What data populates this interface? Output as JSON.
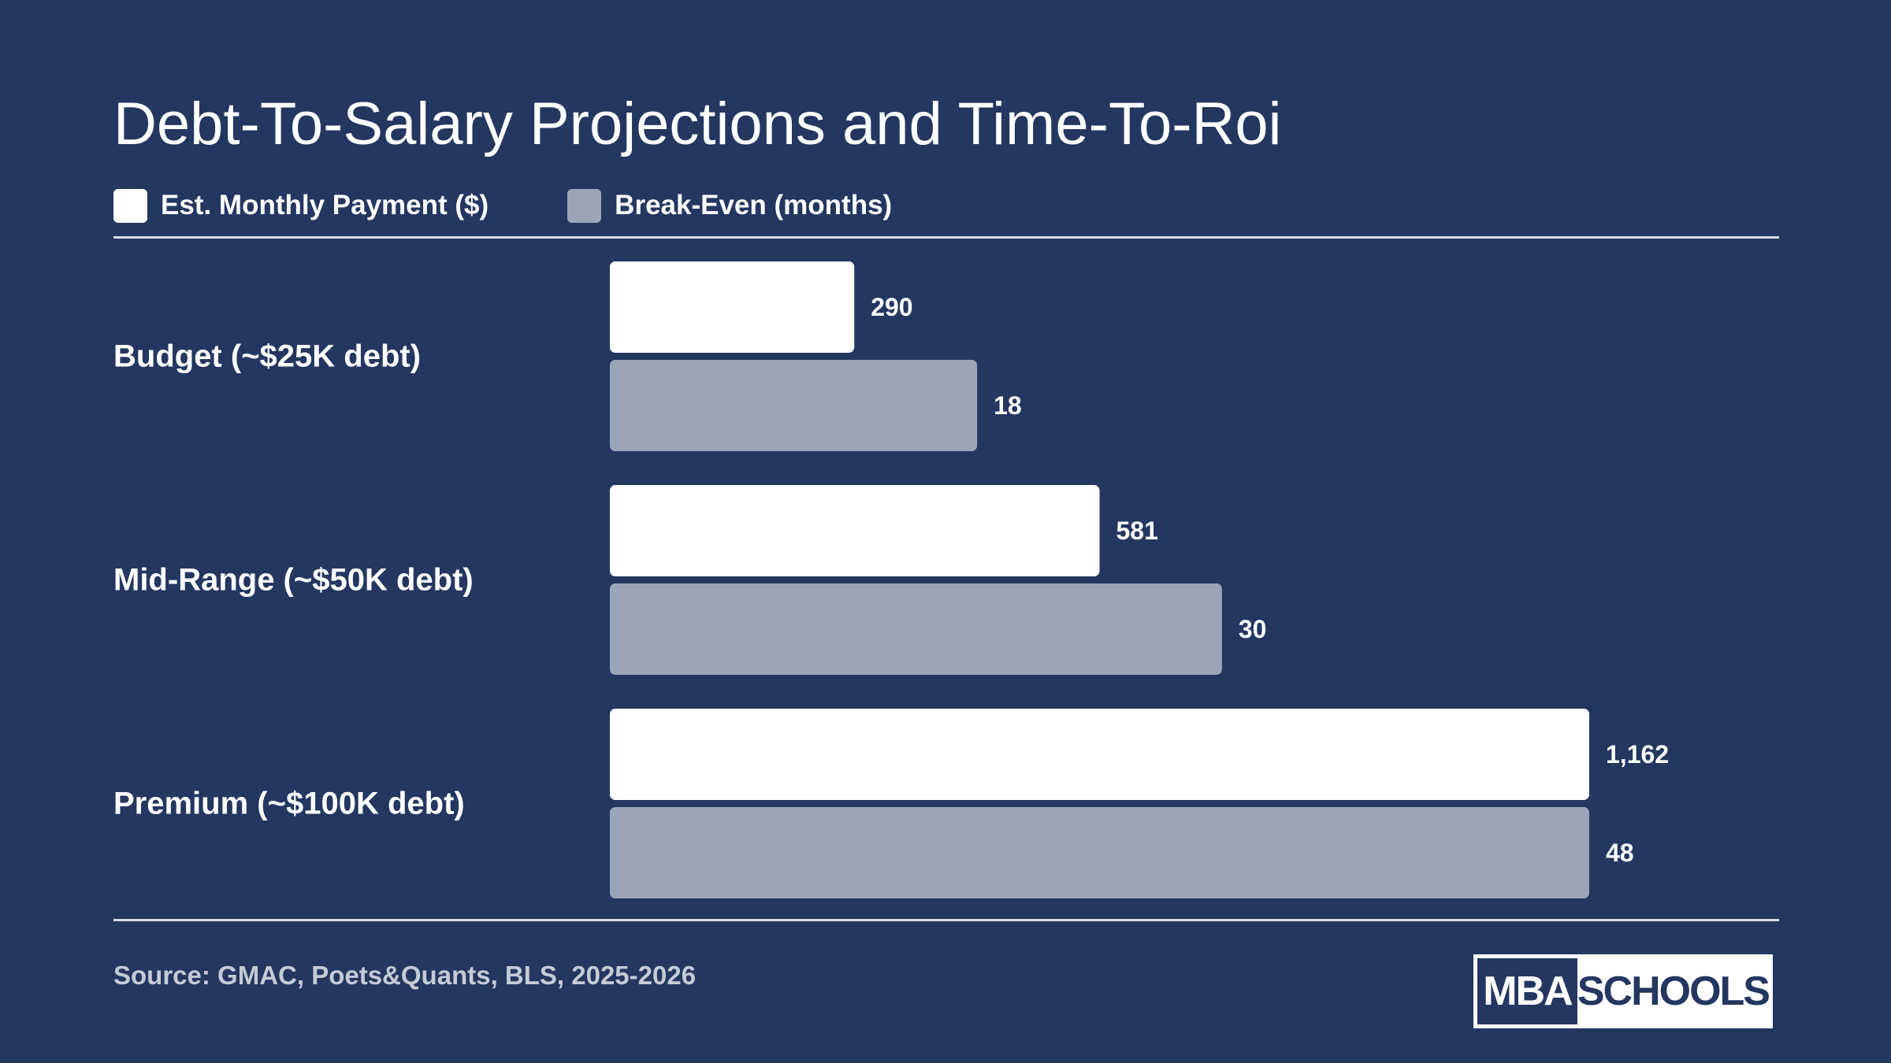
{
  "chart_data": {
    "type": "bar",
    "orientation": "horizontal",
    "title": "Debt-To-Salary Projections and Time-To-Roi",
    "categories": [
      "Budget (~$25K debt)",
      "Mid-Range (~$50K debt)",
      "Premium (~$100K debt)"
    ],
    "series": [
      {
        "name": "Est. Monthly Payment ($)",
        "values": [
          290,
          581,
          1162
        ],
        "labels": [
          "290",
          "581",
          "1,162"
        ],
        "color": "#ffffff"
      },
      {
        "name": "Break-Even (months)",
        "values": [
          18,
          30,
          48
        ],
        "labels": [
          "18",
          "30",
          "48"
        ],
        "color": "#9ca5b8"
      }
    ],
    "legend": "top-left",
    "grid": false,
    "axes_visible": false
  },
  "source": "Source: GMAC, Poets&Quants, BLS, 2025-2026",
  "logo": {
    "left_text": "MBA",
    "right_text": "SCHOOLS"
  },
  "colors": {
    "background": "#233760",
    "series_primary": "#ffffff",
    "series_secondary": "#9ca5b8"
  }
}
